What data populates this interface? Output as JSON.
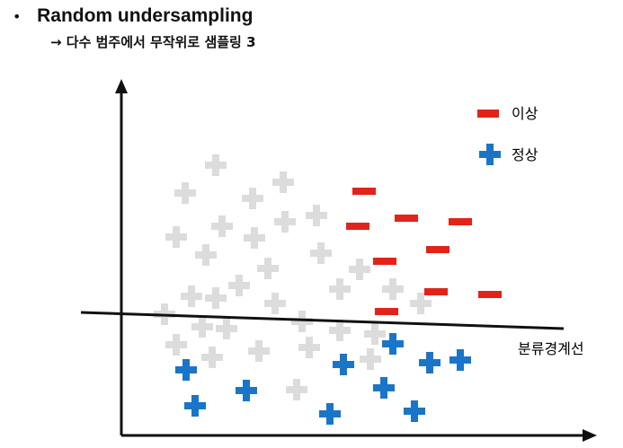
{
  "title": "Random undersampling",
  "bullet": "•",
  "subtitle": "→ 다수 범주에서 무작위로 샘플링 3",
  "legend": {
    "minority_label": "이상",
    "majority_label": "정상"
  },
  "boundary_label": "분류경계선",
  "colors": {
    "minority": "#e2231a",
    "majority": "#1a75c9",
    "removed": "#dcdcdc",
    "axis": "#111111"
  },
  "icons": {
    "minority": "minus-icon",
    "majority": "plus-icon",
    "removed": "plus-icon"
  }
}
